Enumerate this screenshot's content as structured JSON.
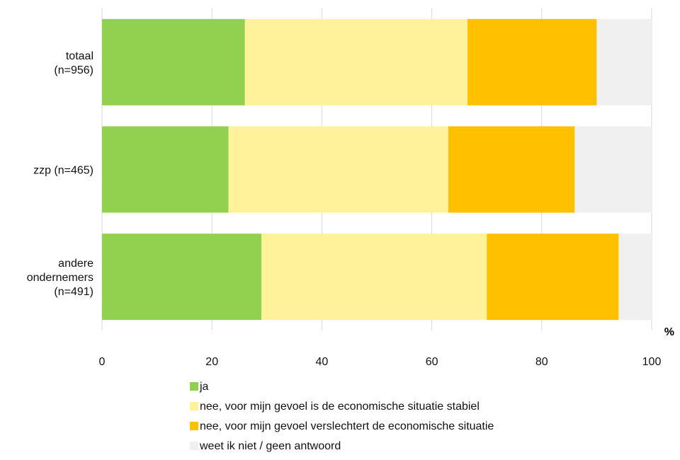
{
  "chart_data": {
    "type": "bar",
    "orientation": "horizontal",
    "stacked": true,
    "categories": [
      [
        "totaal",
        "(n=956)"
      ],
      [
        "zzp (n=465)"
      ],
      [
        "andere",
        "ondernemers",
        "(n=491)"
      ]
    ],
    "series": [
      {
        "name": "ja",
        "color": "#92D050",
        "values": [
          26,
          23,
          29
        ]
      },
      {
        "name": "nee, voor mijn gevoel is de economische situatie stabiel",
        "color": "#FFF29A",
        "values": [
          40.5,
          40,
          41
        ]
      },
      {
        "name": "nee, voor mijn gevoel verslechtert de economische situatie",
        "color": "#FFC000",
        "values": [
          23.5,
          23,
          24
        ]
      },
      {
        "name": "weet ik niet / geen antwoord",
        "color": "#F0F0F0",
        "values": [
          10,
          14,
          6
        ]
      }
    ],
    "x_ticks": [
      0,
      20,
      40,
      60,
      80,
      100
    ],
    "xlim": [
      0,
      100
    ],
    "unit_label": "%",
    "grid": "vertical",
    "legend_position": "bottom"
  },
  "colors": {
    "grid": "#D9D9D9",
    "axis_text": "#111111",
    "background": "#FFFFFF"
  }
}
